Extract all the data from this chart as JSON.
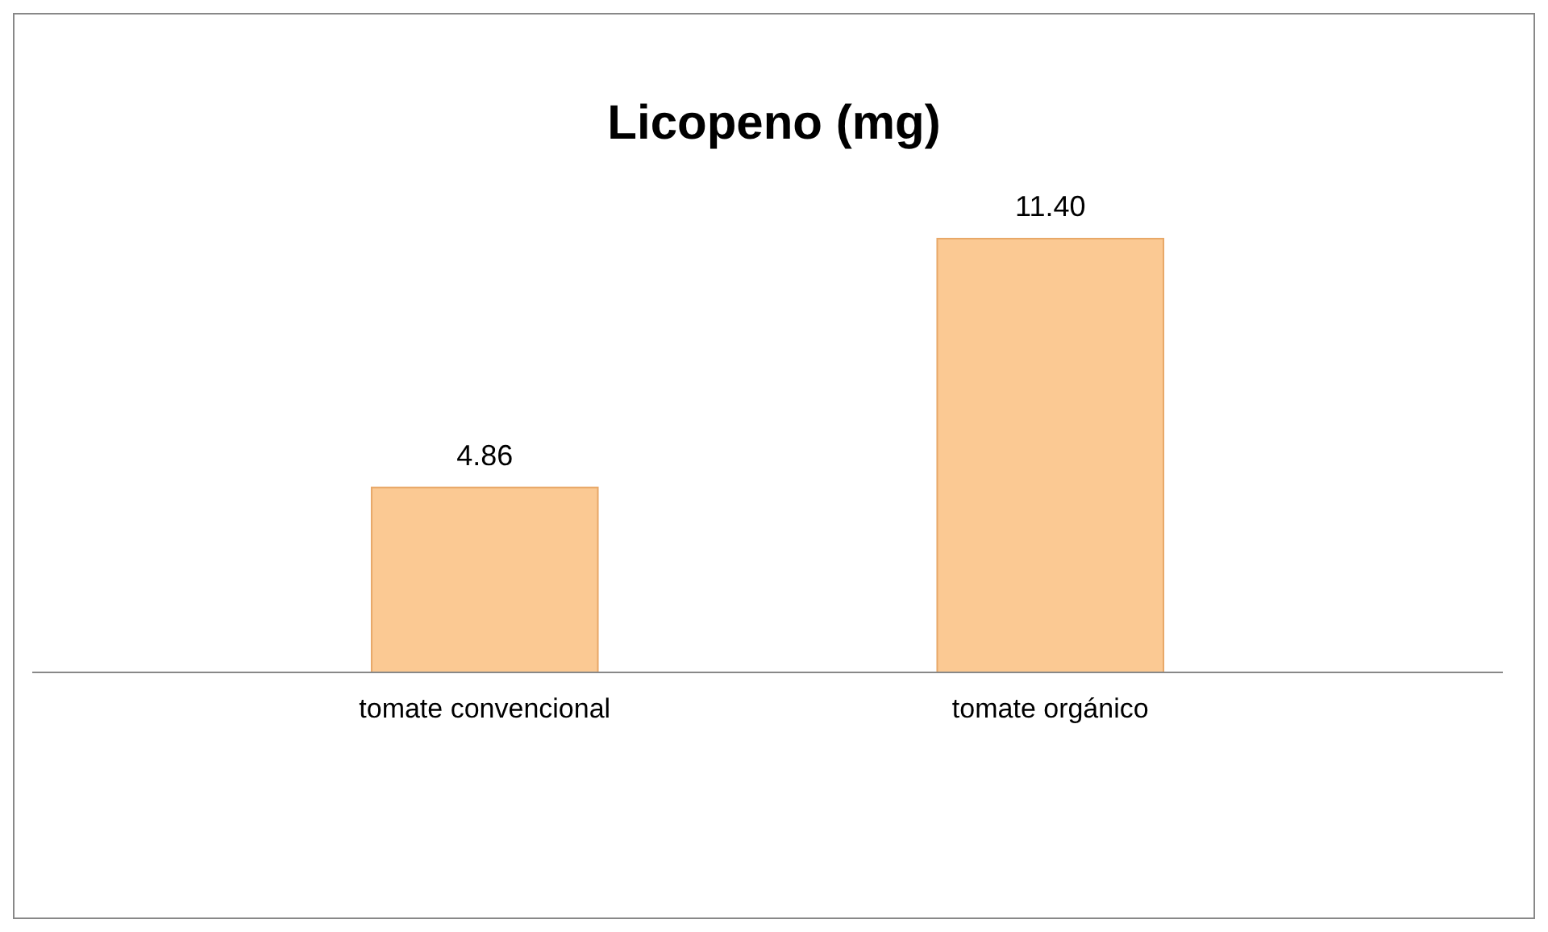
{
  "chart_data": {
    "type": "bar",
    "title": "Licopeno (mg)",
    "categories": [
      "tomate convencional",
      "tomate orgánico"
    ],
    "values": [
      4.86,
      11.4
    ],
    "value_labels": [
      "4.86",
      "11.40"
    ],
    "color": "#fbc993"
  }
}
